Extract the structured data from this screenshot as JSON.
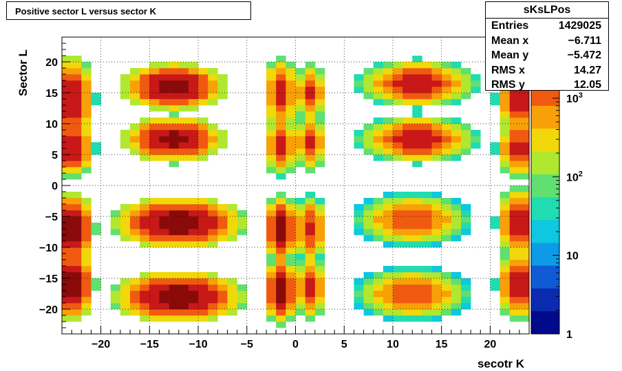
{
  "chart_data": {
    "type": "heatmap",
    "title": "Positive sector L versus sector K",
    "xlabel": "secotr K",
    "ylabel": "Sector L",
    "xlim": [
      -24,
      24
    ],
    "ylim": [
      -24,
      24
    ],
    "x_ticks": [
      -20,
      -15,
      -10,
      -5,
      0,
      5,
      10,
      15,
      20
    ],
    "y_ticks": [
      -20,
      -15,
      -10,
      -5,
      0,
      5,
      10,
      15,
      20
    ],
    "z_scale": "log",
    "zlim": [
      1,
      6000
    ],
    "z_ticks": [
      {
        "value": 1,
        "label": "1"
      },
      {
        "value": 10,
        "label": "10"
      },
      {
        "value": 100,
        "label": "10",
        "sup": "2"
      },
      {
        "value": 1000,
        "label": "10",
        "sup": "3"
      }
    ],
    "grid": true,
    "blobs": [
      {
        "center": [
          -12.5,
          16
        ],
        "peak": 5000,
        "size": [
          4.5,
          3.2
        ]
      },
      {
        "center": [
          -12.5,
          7.5
        ],
        "peak": 4000,
        "size": [
          4.5,
          3.2
        ]
      },
      {
        "center": [
          -12,
          -6
        ],
        "peak": 5500,
        "size": [
          5.5,
          3.5
        ]
      },
      {
        "center": [
          -12,
          -18
        ],
        "peak": 5500,
        "size": [
          5.5,
          3.5
        ]
      },
      {
        "center": [
          12.5,
          16.5
        ],
        "peak": 2500,
        "size": [
          5.0,
          3.2
        ]
      },
      {
        "center": [
          12.5,
          7.5
        ],
        "peak": 2500,
        "size": [
          5.0,
          3.2
        ]
      },
      {
        "center": [
          12,
          -5.5
        ],
        "peak": 1500,
        "size": [
          5.0,
          3.5
        ]
      },
      {
        "center": [
          12,
          -17.5
        ],
        "peak": 1500,
        "size": [
          5.0,
          3.5
        ]
      },
      {
        "center": [
          -23,
          14
        ],
        "peak": 3000,
        "size": [
          2.0,
          6.0
        ]
      },
      {
        "center": [
          -23,
          6
        ],
        "peak": 3000,
        "size": [
          2.0,
          4.0
        ]
      },
      {
        "center": [
          -23,
          -7
        ],
        "peak": 5000,
        "size": [
          2.0,
          5.0
        ]
      },
      {
        "center": [
          -23,
          -16
        ],
        "peak": 5000,
        "size": [
          2.0,
          5.0
        ]
      },
      {
        "center": [
          23,
          14
        ],
        "peak": 2500,
        "size": [
          2.0,
          5.0
        ]
      },
      {
        "center": [
          23,
          6
        ],
        "peak": 2500,
        "size": [
          2.0,
          4.0
        ]
      },
      {
        "center": [
          23,
          -6
        ],
        "peak": 2500,
        "size": [
          2.0,
          5.0
        ]
      },
      {
        "center": [
          23,
          -16
        ],
        "peak": 2500,
        "size": [
          2.0,
          5.0
        ]
      },
      {
        "center": [
          -1.5,
          15
        ],
        "peak": 2500,
        "size": [
          1.5,
          5.0
        ]
      },
      {
        "center": [
          -1.5,
          6.5
        ],
        "peak": 2500,
        "size": [
          1.5,
          4.0
        ]
      },
      {
        "center": [
          -1.5,
          -7
        ],
        "peak": 4500,
        "size": [
          1.5,
          4.5
        ]
      },
      {
        "center": [
          -1.5,
          -17
        ],
        "peak": 4500,
        "size": [
          1.5,
          4.5
        ]
      },
      {
        "center": [
          1.5,
          15
        ],
        "peak": 1800,
        "size": [
          1.5,
          4.0
        ]
      },
      {
        "center": [
          1.5,
          7
        ],
        "peak": 1800,
        "size": [
          1.5,
          4.0
        ]
      },
      {
        "center": [
          1.5,
          -7
        ],
        "peak": 2000,
        "size": [
          1.5,
          4.5
        ]
      },
      {
        "center": [
          1.5,
          -16.5
        ],
        "peak": 2000,
        "size": [
          1.5,
          4.5
        ]
      }
    ],
    "palette": [
      "#000a8a",
      "#0a2bb0",
      "#0f5bd6",
      "#0d9be6",
      "#0dc8e0",
      "#20dcb0",
      "#60e070",
      "#b0e830",
      "#f0d80a",
      "#f8a008",
      "#f05a10",
      "#c81818",
      "#8a0a0a"
    ]
  },
  "stats": {
    "name": "sKsLPos",
    "rows": [
      {
        "label": "Entries",
        "value": "1429025"
      },
      {
        "label": "Mean x",
        "value": "−6.711"
      },
      {
        "label": "Mean y",
        "value": "−5.472"
      },
      {
        "label": "RMS x",
        "value": "14.27"
      },
      {
        "label": "RMS y",
        "value": "12.05"
      }
    ]
  }
}
